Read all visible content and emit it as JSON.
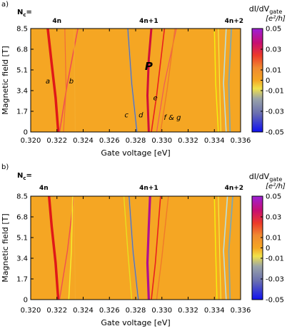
{
  "chart_data": [
    {
      "type": "heatmap",
      "panel_label": "a)",
      "nc_label": "N",
      "nc_sub": "c",
      "nc_eq": "=",
      "top_labels": [
        {
          "x": 0.322,
          "text": "4n"
        },
        {
          "x": 0.329,
          "text": "4n+1"
        },
        {
          "x": 0.3355,
          "text": "4n+2"
        }
      ],
      "xlabel": "Gate voltage [eV]",
      "ylabel": "Magnetic field [T]",
      "xlim": [
        0.32,
        0.336
      ],
      "ylim": [
        0,
        8.5
      ],
      "xticks": [
        "0.320",
        "0.322",
        "0.324",
        "0.326",
        "0.328",
        "0.330",
        "0.332",
        "0.334",
        "0.336"
      ],
      "yticks": [
        "0",
        "1.7",
        "3.4",
        "5.1",
        "6.8",
        "8.5"
      ],
      "colorbar": {
        "label_main": "dI/dV",
        "label_sub": "gate",
        "unit": "[e²/h]",
        "range": [
          -0.05,
          0.05
        ],
        "ticks": [
          "0.05",
          "0.03",
          "0.01",
          "0",
          "-0.01",
          "-0.03",
          "-0.05"
        ]
      },
      "annotations": [
        {
          "text": "a",
          "x": 0.3213,
          "y": 4.0
        },
        {
          "text": "b",
          "x": 0.3231,
          "y": 4.0
        },
        {
          "text": "c",
          "x": 0.3273,
          "y": 1.2
        },
        {
          "text": "d",
          "x": 0.3284,
          "y": 1.2
        },
        {
          "text": "e",
          "x": 0.3295,
          "y": 2.6
        },
        {
          "text": "f & g",
          "x": 0.3308,
          "y": 1.0
        },
        {
          "text": "P",
          "x": 0.329,
          "y": 5.1
        }
      ],
      "series": [
        {
          "color": "#e01818",
          "width": 3.5,
          "points": [
            [
              0.3221,
              0
            ],
            [
              0.3219,
              2.8
            ],
            [
              0.3216,
              5.6
            ],
            [
              0.3213,
              8.5
            ]
          ]
        },
        {
          "color": "#f05050",
          "width": 1.6,
          "points": [
            [
              0.3222,
              0
            ],
            [
              0.3228,
              4.0
            ],
            [
              0.3236,
              8.5
            ]
          ]
        },
        {
          "color": "#f26a3a",
          "width": 1.2,
          "points": [
            [
              0.3225,
              0
            ],
            [
              0.3227,
              3.5
            ],
            [
              0.3226,
              8.5
            ]
          ]
        },
        {
          "color": "#f5ac2c",
          "width": 1.4,
          "points": [
            [
              0.3234,
              0
            ],
            [
              0.3233,
              8.5
            ]
          ]
        },
        {
          "color": "#8aa0b0",
          "width": 2.0,
          "points": [
            [
              0.3281,
              0
            ],
            [
              0.3277,
              4.0
            ],
            [
              0.3274,
              8.5
            ]
          ]
        },
        {
          "color": "#5a5fa0",
          "width": 0.8,
          "points": [
            [
              0.3281,
              0
            ],
            [
              0.3277,
              4.0
            ],
            [
              0.3274,
              8.5
            ]
          ]
        },
        {
          "color": "#d0103a",
          "width": 3.0,
          "points": [
            [
              0.329,
              0
            ],
            [
              0.3289,
              3.0
            ],
            [
              0.329,
              6.0
            ],
            [
              0.3292,
              8.5
            ]
          ]
        },
        {
          "color": "#e82020",
          "width": 1.6,
          "points": [
            [
              0.3292,
              0
            ],
            [
              0.3296,
              3.0
            ],
            [
              0.3302,
              8.5
            ]
          ]
        },
        {
          "color": "#f05858",
          "width": 1.2,
          "points": [
            [
              0.3296,
              0
            ],
            [
              0.3302,
              4.0
            ],
            [
              0.3311,
              8.5
            ]
          ]
        },
        {
          "color": "#f07a2a",
          "width": 1.4,
          "points": [
            [
              0.3299,
              0
            ],
            [
              0.3304,
              3.5
            ],
            [
              0.331,
              8.5
            ]
          ]
        },
        {
          "color": "#f2f010",
          "width": 1.5,
          "points": [
            [
              0.3343,
              0
            ],
            [
              0.3341,
              4.0
            ],
            [
              0.334,
              8.5
            ]
          ]
        },
        {
          "color": "#f4ee40",
          "width": 1.2,
          "points": [
            [
              0.3345,
              0
            ],
            [
              0.3344,
              4.0
            ],
            [
              0.3343,
              8.5
            ]
          ]
        },
        {
          "color": "#b8e0e0",
          "width": 1.6,
          "points": [
            [
              0.3349,
              0
            ],
            [
              0.3347,
              4.0
            ],
            [
              0.3349,
              8.5
            ]
          ]
        },
        {
          "color": "#7fa6b0",
          "width": 1.8,
          "points": [
            [
              0.3352,
              0
            ],
            [
              0.3351,
              4.0
            ],
            [
              0.3353,
              8.5
            ]
          ]
        }
      ]
    },
    {
      "type": "heatmap",
      "panel_label": "b)",
      "nc_label": "N",
      "nc_sub": "c",
      "nc_eq": "=",
      "top_labels": [
        {
          "x": 0.321,
          "text": "4n"
        },
        {
          "x": 0.329,
          "text": "4n+1"
        },
        {
          "x": 0.3355,
          "text": "4n+2"
        }
      ],
      "xlabel": "Gate voltage [eV]",
      "ylabel": "Magnetic field [T]",
      "xlim": [
        0.32,
        0.336
      ],
      "ylim": [
        0,
        8.5
      ],
      "xticks": [
        "0.320",
        "0.322",
        "0.324",
        "0.326",
        "0.328",
        "0.330",
        "0.332",
        "0.334",
        "0.336"
      ],
      "yticks": [
        "0",
        "1.7",
        "3.4",
        "5.1",
        "6.8",
        "8.5"
      ],
      "colorbar": {
        "label_main": "dI/dV",
        "label_sub": "gate",
        "unit": "[e²/h]",
        "range": [
          -0.05,
          0.05
        ],
        "ticks": [
          "0.05",
          "0.03",
          "0.01",
          "0",
          "-0.01",
          "-0.03",
          "-0.05"
        ]
      },
      "annotations": [],
      "series": [
        {
          "color": "#e01818",
          "width": 3.5,
          "points": [
            [
              0.3221,
              0
            ],
            [
              0.3219,
              3.0
            ],
            [
              0.3216,
              6.0
            ],
            [
              0.3214,
              8.5
            ]
          ]
        },
        {
          "color": "#f05050",
          "width": 1.4,
          "points": [
            [
              0.3222,
              0
            ],
            [
              0.3228,
              4.0
            ],
            [
              0.3233,
              8.5
            ]
          ]
        },
        {
          "color": "#f4ee30",
          "width": 1.5,
          "points": [
            [
              0.3229,
              0
            ],
            [
              0.3231,
              4.0
            ],
            [
              0.3232,
              8.5
            ]
          ]
        },
        {
          "color": "#f5ac2c",
          "width": 1.2,
          "points": [
            [
              0.3234,
              0
            ],
            [
              0.3233,
              8.5
            ]
          ]
        },
        {
          "color": "#8aa0b0",
          "width": 2.0,
          "points": [
            [
              0.3282,
              0
            ],
            [
              0.3278,
              4.0
            ],
            [
              0.3275,
              8.5
            ]
          ]
        },
        {
          "color": "#5a5fa0",
          "width": 0.8,
          "points": [
            [
              0.3282,
              0
            ],
            [
              0.3278,
              4.0
            ],
            [
              0.3275,
              8.5
            ]
          ]
        },
        {
          "color": "#e8e020",
          "width": 1.4,
          "points": [
            [
              0.3277,
              0
            ],
            [
              0.3274,
              4.0
            ],
            [
              0.3271,
              8.5
            ]
          ]
        },
        {
          "color": "#b01090",
          "width": 3.2,
          "points": [
            [
              0.329,
              0
            ],
            [
              0.3289,
              3.0
            ],
            [
              0.329,
              6.0
            ],
            [
              0.3291,
              8.5
            ]
          ]
        },
        {
          "color": "#e82020",
          "width": 1.6,
          "points": [
            [
              0.3292,
              0
            ],
            [
              0.3295,
              3.0
            ],
            [
              0.3299,
              8.5
            ]
          ]
        },
        {
          "color": "#f07a2a",
          "width": 1.4,
          "points": [
            [
              0.3296,
              0
            ],
            [
              0.33,
              3.5
            ],
            [
              0.3305,
              8.5
            ]
          ]
        },
        {
          "color": "#f2f010",
          "width": 1.5,
          "points": [
            [
              0.3342,
              0
            ],
            [
              0.3341,
              4.0
            ],
            [
              0.334,
              8.5
            ]
          ]
        },
        {
          "color": "#f4ee40",
          "width": 1.2,
          "points": [
            [
              0.3345,
              0
            ],
            [
              0.3344,
              4.0
            ],
            [
              0.3343,
              8.5
            ]
          ]
        },
        {
          "color": "#b8e0e0",
          "width": 1.6,
          "points": [
            [
              0.3349,
              0
            ],
            [
              0.3347,
              4.0
            ],
            [
              0.335,
              8.5
            ]
          ]
        },
        {
          "color": "#7fa6b0",
          "width": 1.8,
          "points": [
            [
              0.3352,
              0
            ],
            [
              0.3351,
              4.0
            ],
            [
              0.3354,
              8.5
            ]
          ]
        }
      ]
    }
  ]
}
